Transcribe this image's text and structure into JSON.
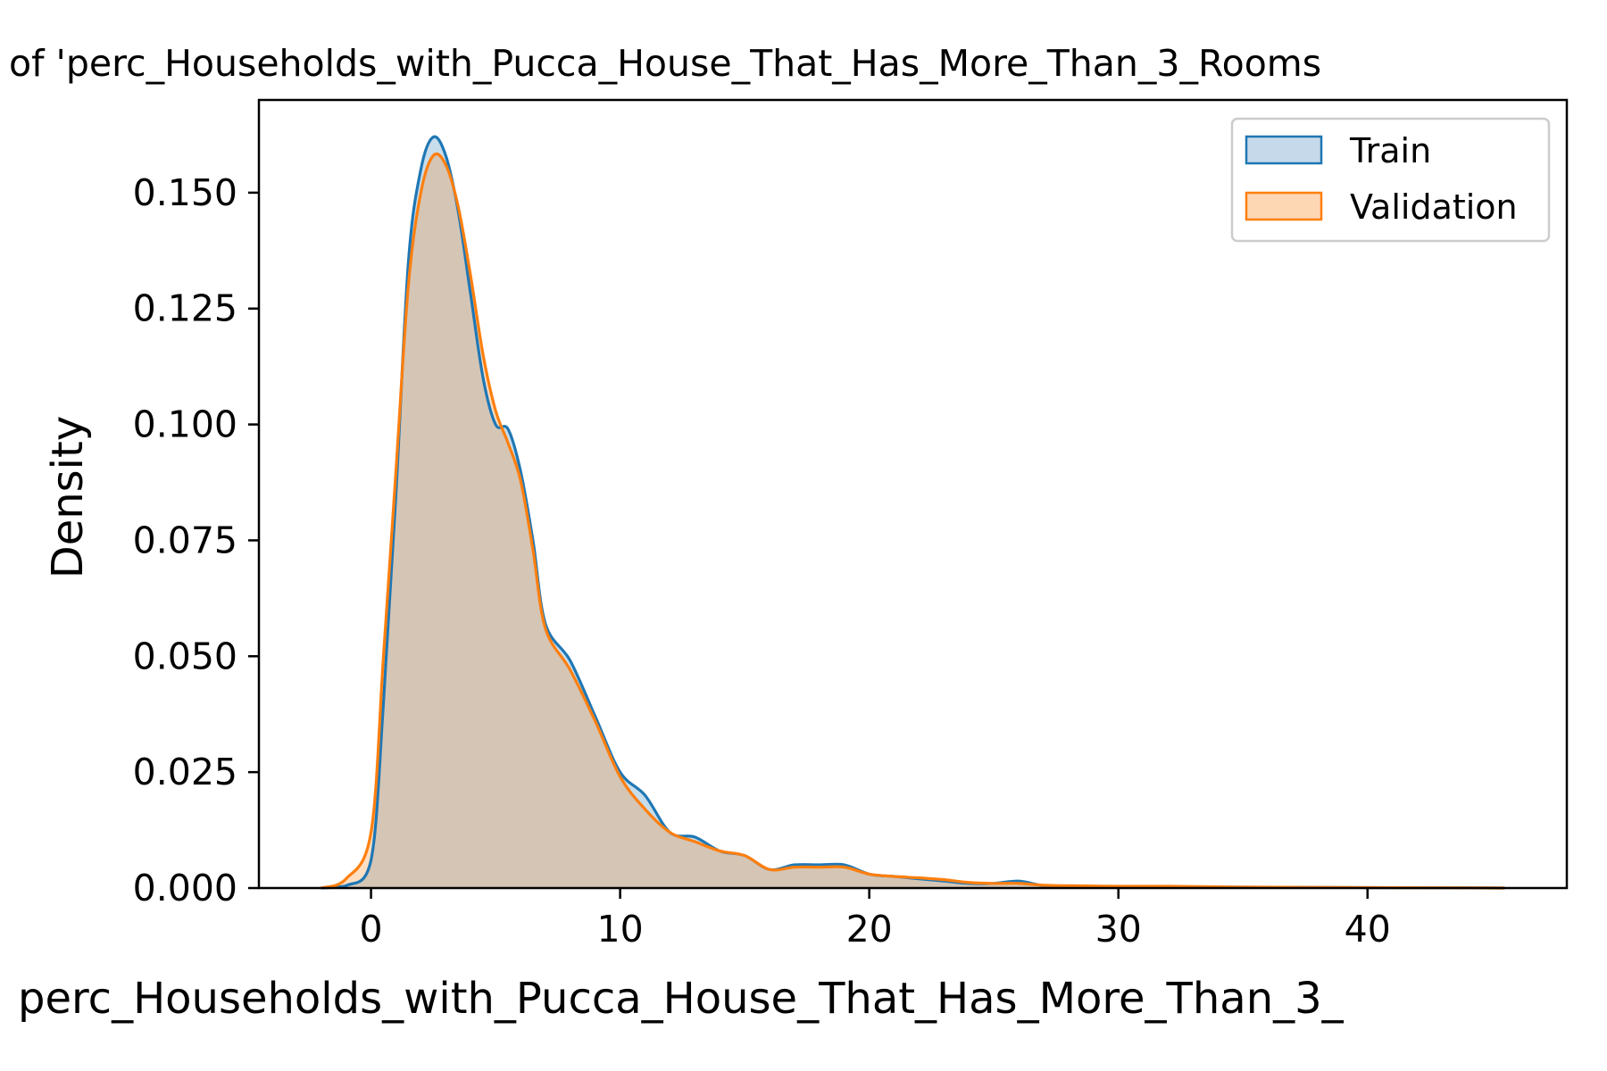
{
  "chart_data": {
    "type": "area",
    "title": "of 'perc_Households_with_Pucca_House_That_Has_More_Than_3_Rooms",
    "xlabel": "perc_Households_with_Pucca_House_That_Has_More_Than_3_",
    "ylabel": "Density",
    "xlim": [
      -4.5,
      48
    ],
    "ylim": [
      0,
      0.17
    ],
    "xticks": [
      0,
      10,
      20,
      30,
      40
    ],
    "xtick_labels": [
      "0",
      "10",
      "20",
      "30",
      "40"
    ],
    "yticks": [
      0,
      0.025,
      0.05,
      0.075,
      0.1,
      0.125,
      0.15
    ],
    "ytick_labels": [
      "0.000",
      "0.025",
      "0.050",
      "0.075",
      "0.100",
      "0.125",
      "0.150"
    ],
    "grid": false,
    "legend": "top-right",
    "series": [
      {
        "name": "Train",
        "color": "#1f77b4",
        "fill": "#c6d9ea",
        "x": [
          -2,
          -1,
          0,
          0.5,
          1,
          1.5,
          2,
          2.5,
          3,
          3.5,
          4,
          4.5,
          5,
          5.5,
          6,
          6.5,
          7,
          8,
          9,
          10,
          11,
          12,
          13,
          14,
          15,
          16,
          17,
          18,
          19,
          20,
          21,
          22,
          23,
          24,
          25,
          26,
          27,
          28,
          30,
          35,
          40,
          45.5
        ],
        "values": [
          0,
          0.0005,
          0.006,
          0.04,
          0.085,
          0.135,
          0.155,
          0.162,
          0.158,
          0.146,
          0.128,
          0.11,
          0.1,
          0.099,
          0.09,
          0.075,
          0.057,
          0.049,
          0.037,
          0.025,
          0.02,
          0.012,
          0.011,
          0.008,
          0.007,
          0.004,
          0.005,
          0.005,
          0.005,
          0.003,
          0.0025,
          0.002,
          0.0015,
          0.001,
          0.001,
          0.0015,
          0.0005,
          0.0004,
          0.0003,
          0.0002,
          0.0001,
          0
        ]
      },
      {
        "name": "Validation",
        "color": "#ff7f0e",
        "fill": "#fdd6b4",
        "x": [
          -2,
          -1,
          0,
          0.5,
          1,
          1.5,
          2,
          2.5,
          3,
          3.5,
          4,
          4.5,
          5,
          5.5,
          6,
          6.5,
          7,
          8,
          9,
          10,
          11,
          12,
          13,
          14,
          15,
          16,
          17,
          18,
          19,
          20,
          21,
          22,
          23,
          24,
          25,
          26,
          27,
          28,
          30,
          32,
          35,
          40,
          45.5
        ],
        "values": [
          0,
          0.002,
          0.012,
          0.05,
          0.09,
          0.13,
          0.15,
          0.158,
          0.156,
          0.147,
          0.132,
          0.115,
          0.103,
          0.096,
          0.088,
          0.073,
          0.056,
          0.047,
          0.036,
          0.024,
          0.017,
          0.012,
          0.01,
          0.008,
          0.007,
          0.004,
          0.0045,
          0.0045,
          0.0045,
          0.003,
          0.0025,
          0.0022,
          0.0018,
          0.0012,
          0.001,
          0.001,
          0.0006,
          0.0005,
          0.0004,
          0.0004,
          0.0002,
          0.0001,
          0
        ]
      }
    ]
  }
}
